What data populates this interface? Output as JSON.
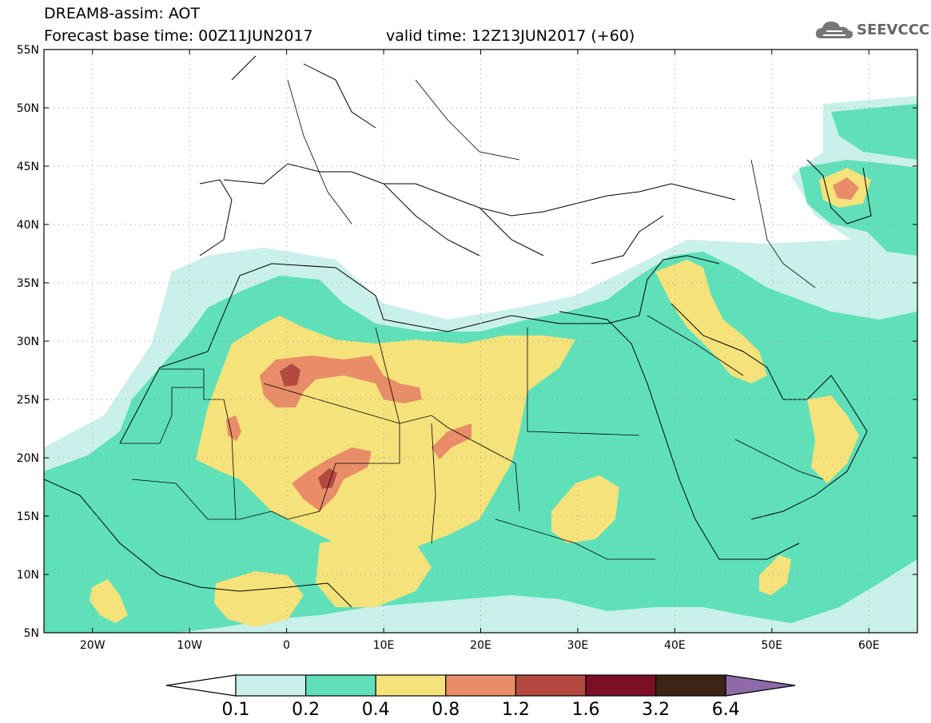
{
  "header": {
    "title": "DREAM8-assim: AOT",
    "base_time": "Forecast base time: 00Z11JUN2017",
    "valid_time": "valid time: 12Z13JUN2017 (+60)"
  },
  "logo": {
    "text": "SEEVCCC",
    "icon": "cloud-icon"
  },
  "map": {
    "lat_labels": [
      "55N",
      "50N",
      "45N",
      "40N",
      "35N",
      "30N",
      "25N",
      "20N",
      "15N",
      "10N",
      "5N"
    ],
    "lon_labels": [
      "20W",
      "10W",
      "0",
      "10E",
      "20E",
      "30E",
      "40E",
      "50E",
      "60E"
    ],
    "lon_range": [
      -25,
      65
    ],
    "lat_range": [
      5,
      55
    ]
  },
  "colorbar": {
    "levels": [
      "0.1",
      "0.2",
      "0.4",
      "0.8",
      "1.2",
      "1.6",
      "3.2",
      "6.4"
    ],
    "colors": [
      "#c9f0ea",
      "#5fe0b9",
      "#f5e27a",
      "#e88d68",
      "#b44a3f",
      "#7a0f26",
      "#3d2414",
      "#8e6aa8"
    ],
    "low_color": "#ffffff"
  },
  "fields": {
    "c02": "#5fe0b9",
    "c01": "#c9f0ea",
    "c04": "#f5e27a",
    "c08": "#e88d68",
    "c12": "#b44a3f"
  }
}
